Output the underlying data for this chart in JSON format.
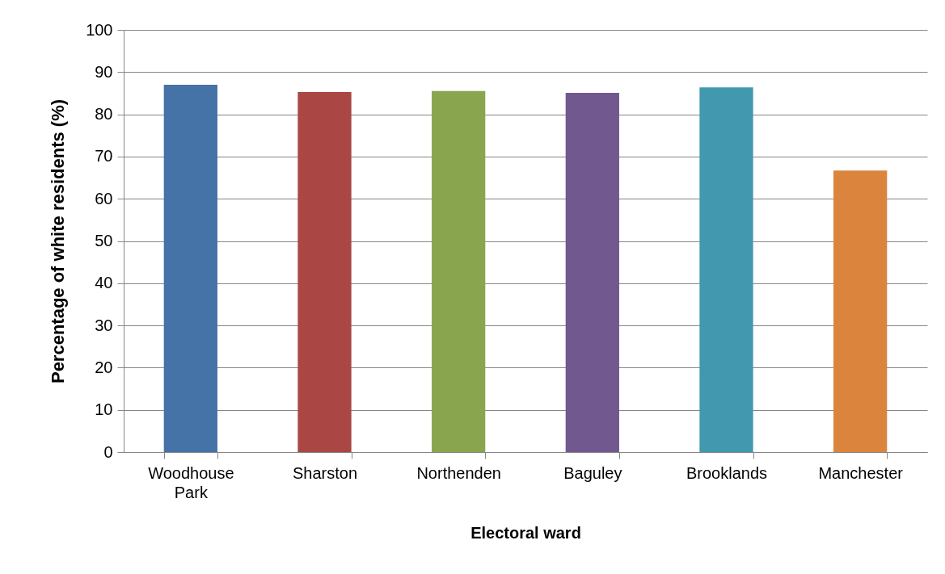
{
  "chart_data": {
    "type": "bar",
    "xlabel": "Electoral ward",
    "ylabel": "Percentage of white residents (%)",
    "categories": [
      "Woodhouse Park",
      "Sharston",
      "Northenden",
      "Baguley",
      "Brooklands",
      "Manchester"
    ],
    "values": [
      87.0,
      85.3,
      85.5,
      85.1,
      86.4,
      66.7
    ],
    "colors": [
      "#4572a7",
      "#aa4643",
      "#89a54e",
      "#71588f",
      "#4198af",
      "#db843d"
    ],
    "ylim": [
      0,
      100
    ],
    "yticks": [
      0,
      10,
      20,
      30,
      40,
      50,
      60,
      70,
      80,
      90,
      100
    ],
    "grid": "y",
    "legend": false
  }
}
